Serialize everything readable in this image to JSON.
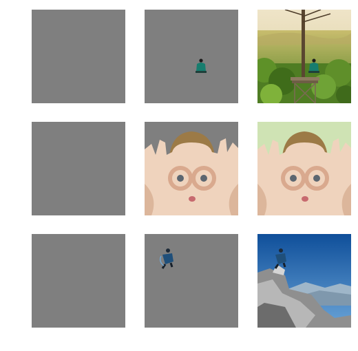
{
  "colors": {
    "background": "#ffffff",
    "mask_gray": "#7f7f7f"
  },
  "grid": {
    "rows": [
      {
        "row_id": "person-on-tree-platform",
        "tiles": [
          {
            "kind": "blank-mask"
          },
          {
            "kind": "masked-subject",
            "subject": "seated-person-small"
          },
          {
            "kind": "original-photo",
            "scene": "tree-platform-landscape"
          }
        ]
      },
      {
        "row_id": "woman-finger-goggles",
        "tiles": [
          {
            "kind": "blank-mask"
          },
          {
            "kind": "masked-subject",
            "subject": "woman-face-hands"
          },
          {
            "kind": "original-photo",
            "scene": "woman-face-hands-green-bg"
          }
        ]
      },
      {
        "row_id": "hiker-on-rocky-peak",
        "tiles": [
          {
            "kind": "blank-mask"
          },
          {
            "kind": "masked-subject",
            "subject": "hiker-small"
          },
          {
            "kind": "original-photo",
            "scene": "rocky-peak-blue-sky"
          }
        ]
      }
    ]
  }
}
